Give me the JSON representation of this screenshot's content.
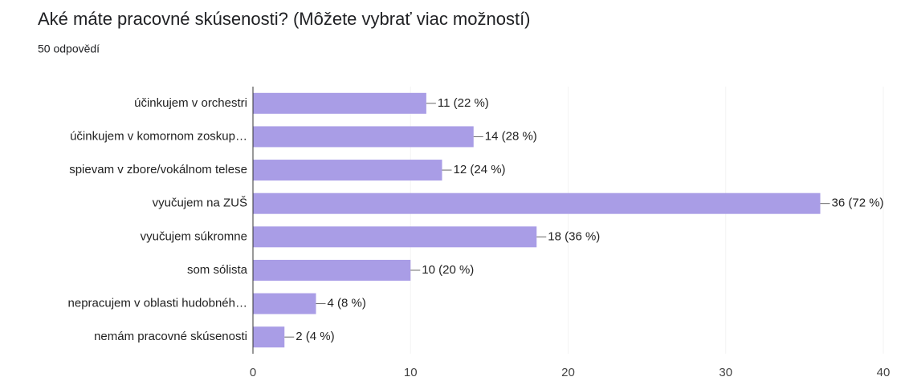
{
  "chart_data": {
    "type": "hbar",
    "title": "Aké máte pracovné skúsenosti? (Môžete vybrať viac možností)",
    "subtitle": "50 odpovědí",
    "categories": [
      "účinkujem v orchestri",
      "účinkujem v komornom zoskup…",
      "spievam v zbore/vokálnom telese",
      "vyučujem na ZUŠ",
      "vyučujem súkromne",
      "som sólista",
      "nepracujem v oblasti hudobnéh…",
      "nemám pracovné skúsenosti"
    ],
    "values": [
      11,
      14,
      12,
      36,
      18,
      10,
      4,
      2
    ],
    "value_labels": [
      "11 (22 %)",
      "14 (28 %)",
      "12 (24 %)",
      "36 (72 %)",
      "18 (36 %)",
      "10 (20 %)",
      "4 (8 %)",
      "2 (4 %)"
    ],
    "color": "#a99de6",
    "xlim": [
      0,
      40
    ],
    "xticks": [
      0,
      10,
      20,
      30,
      40
    ],
    "grid": true
  }
}
